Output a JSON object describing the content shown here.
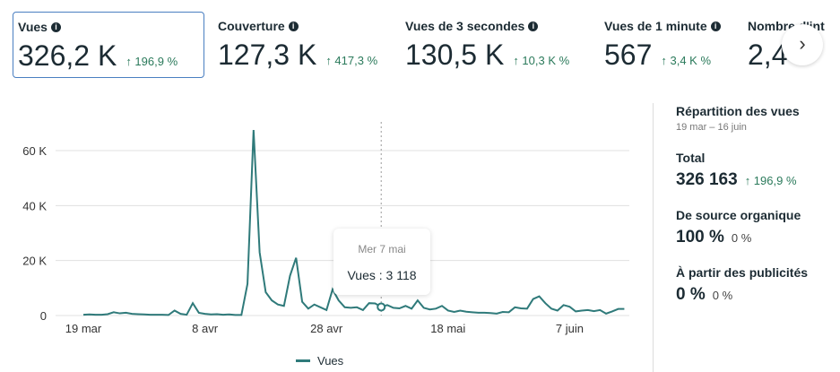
{
  "metrics": [
    {
      "label": "Vues",
      "value": "326,2 K",
      "change": "↑ 196,9 %"
    },
    {
      "label": "Couverture",
      "value": "127,3 K",
      "change": "↑ 417,3 %"
    },
    {
      "label": "Vues de 3 secondes",
      "value": "130,5 K",
      "change": "↑ 10,3 K %"
    },
    {
      "label": "Vues de 1 minute",
      "value": "567",
      "change": "↑ 3,4 K %"
    },
    {
      "label": "Nombre d'int",
      "value": "2,4",
      "change": ""
    }
  ],
  "next_button": "›",
  "chart_data": {
    "type": "line",
    "series": [
      {
        "name": "Vues",
        "color": "#2f7a7a",
        "values": [
          300,
          400,
          300,
          300,
          500,
          1200,
          800,
          1000,
          600,
          500,
          400,
          300,
          300,
          300,
          200,
          1800,
          600,
          300,
          4500,
          1000,
          600,
          400,
          500,
          300,
          400,
          200,
          200,
          11500,
          67500,
          23000,
          8500,
          5500,
          4000,
          3500,
          14500,
          21000,
          5000,
          2500,
          4000,
          3000,
          2000,
          9500,
          5500,
          3000,
          2800,
          3000,
          2000,
          4500,
          4400,
          3118,
          3800,
          2800,
          2600,
          3500,
          2500,
          5500,
          2800,
          2200,
          2500,
          3500,
          1800,
          1300,
          1800,
          1400,
          1200,
          1000,
          1000,
          900,
          700,
          1300,
          1200,
          3000,
          2600,
          2500,
          6000,
          7000,
          4500,
          2500,
          1800,
          3800,
          3200,
          1500,
          1800,
          2000,
          1600,
          2000,
          700,
          1500,
          2400,
          2400
        ]
      }
    ],
    "x_start": "19 mar",
    "x_end": "16 juin",
    "x_ticks": [
      {
        "label": "19 mar",
        "day": 0
      },
      {
        "label": "8 avr",
        "day": 20
      },
      {
        "label": "28 avr",
        "day": 40
      },
      {
        "label": "18 mai",
        "day": 60
      },
      {
        "label": "7 juin",
        "day": 80
      }
    ],
    "y_ticks": [
      {
        "label": "0",
        "v": 0
      },
      {
        "label": "20 K",
        "v": 20000
      },
      {
        "label": "40 K",
        "v": 40000
      },
      {
        "label": "60 K",
        "v": 60000
      }
    ],
    "ylim": [
      0,
      70000
    ],
    "grid": true,
    "legend": "bottom",
    "tooltip": {
      "date": "Mer 7 mai",
      "text": "Vues : 3 118",
      "day": 49
    }
  },
  "legend_label": "Vues",
  "breakdown": {
    "title": "Répartition des vues",
    "range": "19 mar – 16 juin",
    "total_label": "Total",
    "total": "326 163",
    "total_change": "↑ 196,9 %",
    "organic_label": "De source organique",
    "organic": "100 %",
    "organic_change": "0 %",
    "ads_label": "À partir des publicités",
    "ads": "0 %",
    "ads_change": "0 %"
  }
}
